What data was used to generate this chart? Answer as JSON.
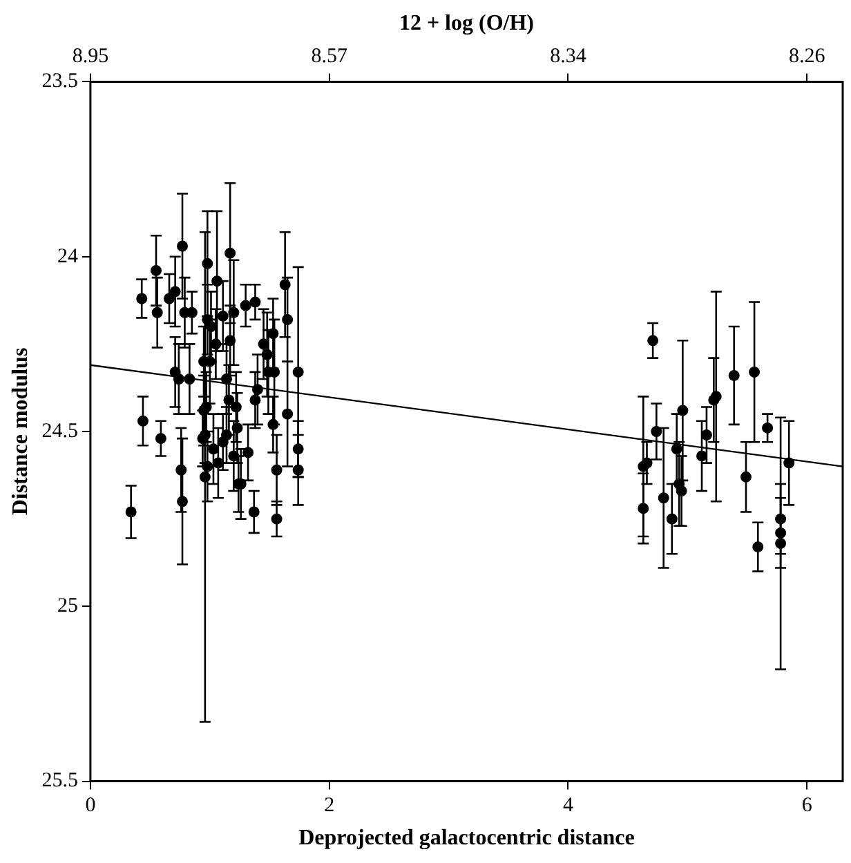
{
  "chart_data": {
    "type": "scatter",
    "xlabel": "Deprojected galactocentric distance",
    "ylabel": "Distance modulus",
    "x2label": "12 + log (O/H)",
    "xlim": [
      0,
      6.3
    ],
    "xticks": [
      0,
      2,
      4,
      6
    ],
    "ylim": [
      25.5,
      23.5
    ],
    "yticks": [
      23.5,
      24,
      24.5,
      25,
      25.5
    ],
    "annotations": [
      "8.95",
      "8.57",
      "8.34",
      "8.26"
    ],
    "grid": false,
    "legend": false,
    "marker": "circle",
    "series": [
      {
        "color": "#000000",
        "x": [
          0.34,
          0.43,
          0.44,
          0.55,
          0.56,
          0.59,
          0.66,
          0.71,
          0.71,
          0.74,
          0.77,
          0.79,
          0.76,
          0.77,
          0.83,
          0.85,
          0.98,
          0.98,
          0.95,
          0.95,
          0.96,
          0.98,
          0.96,
          1.06,
          1.01,
          1.0,
          1.05,
          0.97,
          0.94,
          1.03,
          1.07,
          1.11,
          1.17,
          1.2,
          1.17,
          1.14,
          1.16,
          1.22,
          1.23,
          1.11,
          1.2,
          1.14,
          1.24,
          1.26,
          1.32,
          1.3,
          1.38,
          1.37,
          1.4,
          1.38,
          1.45,
          1.48,
          1.53,
          1.49,
          1.54,
          1.53,
          1.56,
          1.56,
          1.63,
          1.65,
          1.65,
          1.74,
          1.74,
          1.74,
          4.63,
          4.63,
          4.66,
          4.71,
          4.74,
          4.8,
          4.87,
          4.91,
          4.93,
          4.95,
          4.96,
          5.12,
          5.16,
          5.22,
          5.24,
          5.39,
          5.49,
          5.56,
          5.59,
          5.67,
          5.78,
          5.78,
          5.78,
          5.85
        ],
        "values": [
          24.73,
          24.12,
          24.47,
          24.04,
          24.16,
          24.52,
          24.12,
          24.1,
          24.33,
          24.35,
          23.97,
          24.16,
          24.61,
          24.7,
          24.35,
          24.16,
          24.02,
          24.18,
          24.3,
          24.44,
          24.51,
          24.6,
          24.63,
          24.07,
          24.2,
          24.3,
          24.25,
          24.43,
          24.52,
          24.55,
          24.59,
          24.17,
          23.99,
          24.16,
          24.24,
          24.35,
          24.41,
          24.43,
          24.49,
          24.53,
          24.57,
          24.51,
          24.65,
          24.65,
          24.56,
          24.14,
          24.13,
          24.73,
          24.38,
          24.41,
          24.25,
          24.28,
          24.22,
          24.33,
          24.33,
          24.48,
          24.61,
          24.75,
          24.08,
          24.18,
          24.45,
          24.33,
          24.55,
          24.61,
          24.6,
          24.72,
          24.59,
          24.24,
          24.5,
          24.69,
          24.75,
          24.55,
          24.65,
          24.67,
          24.44,
          24.57,
          24.51,
          24.41,
          24.4,
          24.34,
          24.63,
          24.33,
          24.83,
          24.49,
          24.75,
          24.79,
          24.82,
          24.59
        ],
        "errors": [
          0.075,
          0.055,
          0.07,
          0.1,
          0.1,
          0.05,
          0.07,
          0.1,
          0.1,
          0.1,
          0.15,
          0.1,
          0.12,
          0.18,
          0.1,
          0.06,
          0.15,
          0.1,
          0.1,
          0.1,
          0.08,
          0.1,
          0.7,
          0.2,
          0.1,
          0.12,
          0.1,
          0.1,
          0.08,
          0.1,
          0.1,
          0.1,
          0.2,
          0.15,
          0.1,
          0.1,
          0.1,
          0.1,
          0.1,
          0.08,
          0.1,
          0.08,
          0.08,
          0.1,
          0.08,
          0.06,
          0.05,
          0.06,
          0.1,
          0.08,
          0.1,
          0.12,
          0.1,
          0.12,
          0.15,
          0.08,
          0.1,
          0.05,
          0.15,
          0.12,
          0.15,
          0.3,
          0.08,
          0.1,
          0.2,
          0.1,
          0.06,
          0.05,
          0.08,
          0.2,
          0.1,
          0.1,
          0.12,
          0.1,
          0.2,
          0.1,
          0.08,
          0.12,
          0.3,
          0.14,
          0.1,
          0.2,
          0.07,
          0.04,
          0.1,
          0.1,
          0.36,
          0.12
        ]
      },
      {
        "type": "line",
        "marker": "none",
        "color": "#000000",
        "x": [
          0,
          6.3
        ],
        "values": [
          24.31,
          24.6
        ]
      }
    ]
  }
}
